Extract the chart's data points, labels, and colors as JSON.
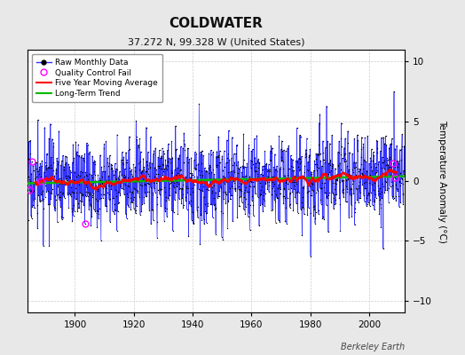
{
  "title": "COLDWATER",
  "subtitle": "37.272 N, 99.328 W (United States)",
  "credit": "Berkeley Earth",
  "ylabel": "Temperature Anomaly (°C)",
  "ylim": [
    -11,
    11
  ],
  "yticks": [
    -10,
    -5,
    0,
    5,
    10
  ],
  "xlim": [
    1884,
    2012
  ],
  "xticks": [
    1900,
    1920,
    1940,
    1960,
    1980,
    2000
  ],
  "start_year": 1884,
  "end_year": 2011,
  "background_color": "#e8e8e8",
  "plot_bg_color": "#ffffff",
  "raw_line_color": "#3333ff",
  "raw_marker_color": "#000000",
  "moving_avg_color": "#ff0000",
  "trend_color": "#00bb00",
  "qc_fail_color": "#ff00ff",
  "grid_color": "#cccccc",
  "seed": 17
}
